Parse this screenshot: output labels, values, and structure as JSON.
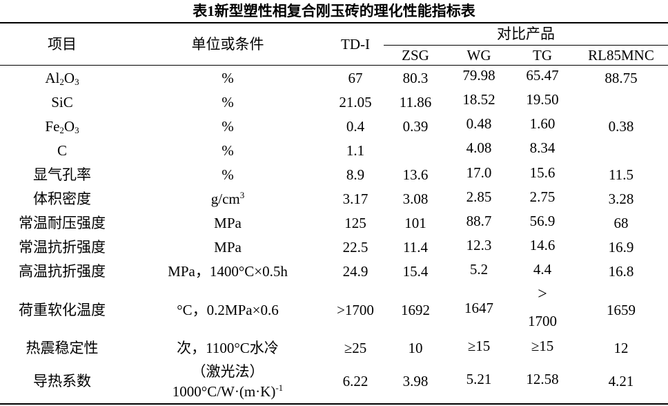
{
  "title": "表1新型塑性相复合刚玉砖的理化性能指标表",
  "header": {
    "item": "项目",
    "unit": "单位或条件",
    "td": "TD-I",
    "compare": "对比产品",
    "zsg": "ZSG",
    "wg": "WG",
    "tg": "TG",
    "rl": "RL85MNC"
  },
  "rows": [
    {
      "item_a": "Al",
      "item_sub": "2",
      "item_b": "O",
      "item_sub2": "3",
      "unit": "%",
      "td": "67",
      "zsg": "80.3",
      "wg": "79.98",
      "tg": "65.47",
      "rl": "88.75"
    },
    {
      "item": "SiC",
      "unit": "%",
      "td": "21.05",
      "zsg": "11.86",
      "wg": "18.52",
      "tg": "19.50",
      "rl": ""
    },
    {
      "item_a": "Fe",
      "item_sub": "2",
      "item_b": "O",
      "item_sub2": "3",
      "unit": "%",
      "td": "0.4",
      "zsg": "0.39",
      "wg": "0.48",
      "tg": "1.60",
      "rl": "0.38"
    },
    {
      "item": "C",
      "unit": "%",
      "td": "1.1",
      "zsg": "",
      "wg": "4.08",
      "tg": "8.34",
      "rl": ""
    },
    {
      "item": "显气孔率",
      "unit": "%",
      "td": "8.9",
      "zsg": "13.6",
      "wg": "17.0",
      "tg": "15.6",
      "rl": "11.5"
    },
    {
      "item": "体积密度",
      "unit_a": "g/cm",
      "unit_sup": "3",
      "td": "3.17",
      "zsg": "3.08",
      "wg": "2.85",
      "tg": "2.75",
      "rl": "3.28"
    },
    {
      "item": "常温耐压强度",
      "unit": "MPa",
      "td": "125",
      "zsg": "101",
      "wg": "88.7",
      "tg": "56.9",
      "rl": "68"
    },
    {
      "item": "常温抗折强度",
      "unit": "MPa",
      "td": "22.5",
      "zsg": "11.4",
      "wg": "12.3",
      "tg": "14.6",
      "rl": "16.9"
    },
    {
      "item": "高温抗折强度",
      "unit": "MPa，1400°C×0.5h",
      "td": "24.9",
      "zsg": "15.4",
      "wg": "5.2",
      "tg": "4.4",
      "rl": "16.8"
    },
    {
      "item": "荷重软化温度",
      "unit": "°C，0.2MPa×0.6",
      "td": ">1700",
      "zsg": "1692",
      "wg": "1647",
      "tg_a": ">",
      "tg_b": "1700",
      "rl": "1659"
    },
    {
      "item": "热震稳定性",
      "unit": "次，1100°C水冷",
      "td": "≥25",
      "zsg": "10",
      "wg": "≥15",
      "tg": "≥15",
      "rl": "12"
    },
    {
      "item": "导热系数",
      "unit_a": "（激光法）",
      "unit_b": "1000°C/W·(m·K)",
      "unit_sup": "-1",
      "td": "6.22",
      "zsg": "3.98",
      "wg": "5.21",
      "tg": "12.58",
      "rl": "4.21"
    }
  ]
}
